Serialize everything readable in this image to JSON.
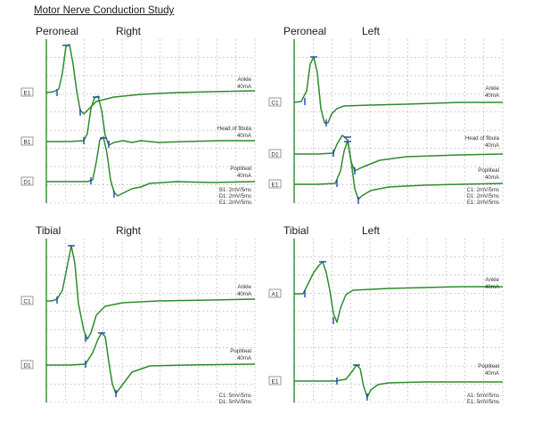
{
  "title": "Motor Nerve Conduction Study",
  "colors": {
    "trace": "#2e8b2e",
    "marker": "#1f3fbf",
    "grid": "#9a9a9a",
    "axis": "#2e8b2e"
  },
  "panels": [
    {
      "nerve": "Peroneal",
      "side": "Right",
      "traces": [
        {
          "channel": "E1",
          "site": "Ankle",
          "intensity": "40mA"
        },
        {
          "channel": "B1",
          "site": "Head of fibula",
          "intensity": "40mA"
        },
        {
          "channel": "D1",
          "site": "Popliteal",
          "intensity": "40mA"
        }
      ],
      "scales": [
        "B1: 2mV/5ms",
        "D1: 2mV/5ms",
        "E1: 2mV/5ms"
      ]
    },
    {
      "nerve": "Peroneal",
      "side": "Left",
      "traces": [
        {
          "channel": "C1",
          "site": "Ankle",
          "intensity": "40mA"
        },
        {
          "channel": "D1",
          "site": "Head of fibula",
          "intensity": "40mA"
        },
        {
          "channel": "E1",
          "site": "Popliteal",
          "intensity": "40mA"
        }
      ],
      "scales": [
        "C1: 2mV/5ms",
        "D1: 2mV/5ms",
        "E1: 2mV/5ms"
      ]
    },
    {
      "nerve": "Tibial",
      "side": "Right",
      "traces": [
        {
          "channel": "C1",
          "site": "Ankle",
          "intensity": "40mA"
        },
        {
          "channel": "D1",
          "site": "Popliteal",
          "intensity": "40mA"
        }
      ],
      "scales": [
        "C1: 5mV/5ms",
        "D1: 5mV/5ms"
      ]
    },
    {
      "nerve": "Tibial",
      "side": "Left",
      "traces": [
        {
          "channel": "A1",
          "site": "Ankle",
          "intensity": "40mA"
        },
        {
          "channel": "E1",
          "site": "Popliteal",
          "intensity": "40mA"
        }
      ],
      "scales": [
        "A1: 5mV/5ms",
        "E1: 5mV/5ms"
      ]
    }
  ],
  "chart_data": {
    "type": "line",
    "title": "Motor Nerve Conduction Study"
  }
}
